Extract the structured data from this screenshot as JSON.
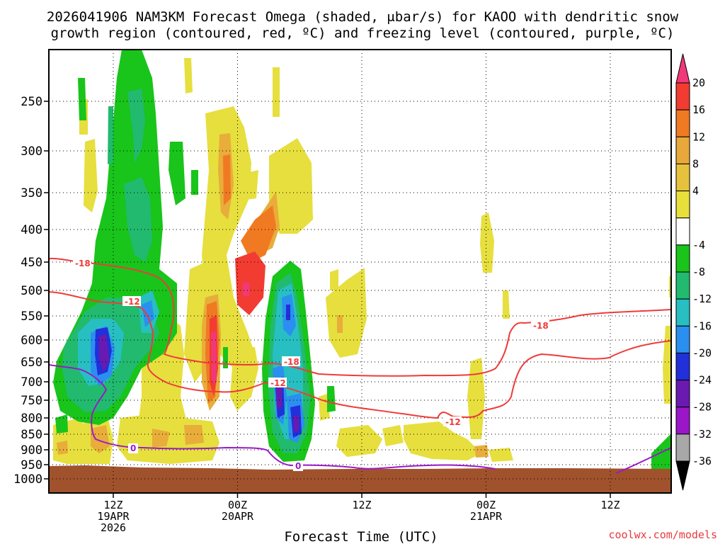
{
  "chart_data": {
    "type": "time-height contour",
    "title_line1": "2026041906 NAM3KM Forecast Omega (shaded, μbar/s) for KAOO with dendritic snow",
    "title_line2": "growth region (contoured, red, ºC) and freezing level (contoured, purple, ºC)",
    "xlabel": "Forecast Time (UTC)",
    "ylabel": "",
    "y_axis_labels": [
      "250",
      "300",
      "350",
      "400",
      "450",
      "500",
      "550",
      "600",
      "650",
      "700",
      "750",
      "800",
      "850",
      "900",
      "950",
      "1000"
    ],
    "x_ticks": [
      {
        "hour": 6,
        "line1": "12Z",
        "line2": "19APR",
        "line3": "2026"
      },
      {
        "hour": 18,
        "line1": "00Z",
        "line2": "20APR",
        "line3": ""
      },
      {
        "hour": 30,
        "line1": "12Z",
        "line2": "",
        "line3": ""
      },
      {
        "hour": 42,
        "line1": "00Z",
        "line2": "21APR",
        "line3": ""
      },
      {
        "hour": 54,
        "line1": "12Z",
        "line2": "",
        "line3": ""
      }
    ],
    "x_range_hours": [
      0,
      60
    ],
    "y_range_hpa": [
      200,
      1050
    ],
    "colorbar": {
      "labels": [
        "20",
        "16",
        "12",
        "8",
        "4",
        "-4",
        "-8",
        "-12",
        "-16",
        "-20",
        "-24",
        "-28",
        "-32",
        "-36"
      ],
      "colors": [
        "#f2387a",
        "#f23c32",
        "#f07a22",
        "#e8a93a",
        "#e6c23c",
        "#e8e03a",
        "#ffffff",
        "#19c41b",
        "#22ba6e",
        "#27bfc2",
        "#2b8ff0",
        "#2130d8",
        "#6a1ab0",
        "#9a16c8",
        "#a8a8a8",
        "#000000"
      ]
    },
    "contour_labels_red": [
      "-18",
      "-12",
      "-12",
      "-18",
      "-12",
      "-18"
    ],
    "contour_labels_purple": [
      "0",
      "0"
    ],
    "series": [
      {
        "name": "dgz -12C contour",
        "color": "#ef3b3b"
      },
      {
        "name": "dgz -18C contour",
        "color": "#ef3b3b"
      },
      {
        "name": "freezing level 0C",
        "color": "#9b19c9"
      }
    ],
    "credit": "coolwx.com/models"
  }
}
